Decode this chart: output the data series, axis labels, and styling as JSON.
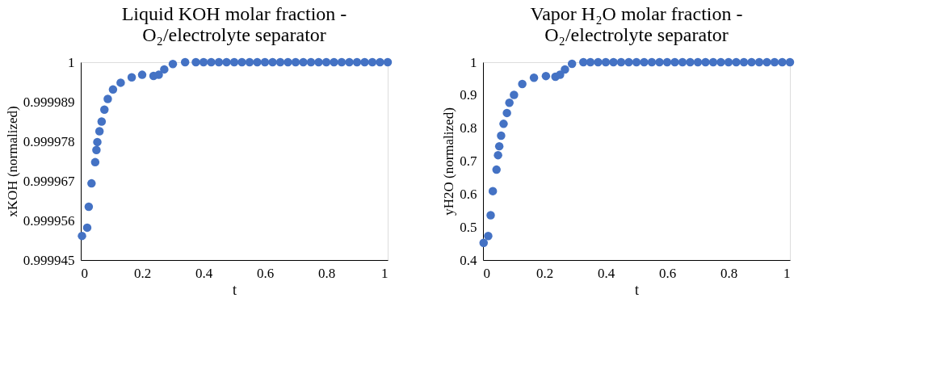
{
  "chart_data": [
    {
      "type": "scatter",
      "title": "Liquid KOH molar fraction -\nO₂/electrolyte separator",
      "xlabel": "t",
      "ylabel": "xKOH (normalized)",
      "xlim": [
        0,
        1
      ],
      "xticks": [
        0,
        0.2,
        0.4,
        0.6,
        0.8,
        1
      ],
      "ylim": [
        0.999945,
        1
      ],
      "yticks": [
        0.999945,
        0.999956,
        0.999967,
        0.999978,
        0.999989,
        1
      ],
      "grid": false,
      "marker": "circle",
      "series": [
        {
          "color": "#4472c4",
          "x": [
            0.004,
            0.021,
            0.026,
            0.035,
            0.047,
            0.051,
            0.054,
            0.061,
            0.068,
            0.077,
            0.088,
            0.105,
            0.13,
            0.166,
            0.2,
            0.237,
            0.254,
            0.272,
            0.3,
            0.34,
            0.375,
            0.4,
            0.425,
            0.45,
            0.475,
            0.5,
            0.525,
            0.55,
            0.575,
            0.6,
            0.625,
            0.65,
            0.675,
            0.7,
            0.725,
            0.75,
            0.775,
            0.8,
            0.825,
            0.85,
            0.875,
            0.9,
            0.925,
            0.95,
            0.975,
            1
          ],
          "values": [
            0.9999517,
            0.999954,
            0.9999598,
            0.9999663,
            0.9999722,
            0.9999756,
            0.9999778,
            0.9999808,
            0.9999835,
            0.9999868,
            0.9999898,
            0.9999924,
            0.9999943,
            0.9999958,
            0.9999965,
            0.9999962,
            0.9999965,
            0.999998,
            0.9999995,
            1,
            1,
            1,
            1,
            1,
            1,
            1,
            1,
            1,
            1,
            1,
            1,
            1,
            1,
            1,
            1,
            1,
            1,
            1,
            1,
            1,
            1,
            1,
            1,
            1,
            1,
            1
          ]
        }
      ]
    },
    {
      "type": "scatter",
      "title": "Vapor H₂O molar fraction -\nO₂/electrolyte separator",
      "xlabel": "t",
      "ylabel": "yH2O (normalized)",
      "xlim": [
        0,
        1
      ],
      "xticks": [
        0,
        0.2,
        0.4,
        0.6,
        0.8,
        1
      ],
      "ylim": [
        0.4,
        1
      ],
      "yticks": [
        0.4,
        0.5,
        0.6,
        0.7,
        0.8,
        0.9,
        1
      ],
      "grid": false,
      "marker": "circle",
      "series": [
        {
          "color": "#4472c4",
          "x": [
            0.002,
            0.017,
            0.025,
            0.032,
            0.044,
            0.049,
            0.053,
            0.059,
            0.067,
            0.078,
            0.086,
            0.101,
            0.128,
            0.166,
            0.205,
            0.236,
            0.251,
            0.267,
            0.29,
            0.327,
            0.35,
            0.375,
            0.4,
            0.425,
            0.45,
            0.475,
            0.5,
            0.525,
            0.55,
            0.575,
            0.6,
            0.625,
            0.65,
            0.675,
            0.7,
            0.725,
            0.75,
            0.775,
            0.8,
            0.825,
            0.85,
            0.875,
            0.9,
            0.925,
            0.95,
            0.975,
            1
          ],
          "values": [
            0.452,
            0.473,
            0.536,
            0.609,
            0.674,
            0.718,
            0.745,
            0.777,
            0.813,
            0.846,
            0.877,
            0.901,
            0.934,
            0.953,
            0.958,
            0.956,
            0.962,
            0.978,
            0.995,
            1,
            1,
            1,
            1,
            1,
            1,
            1,
            1,
            1,
            1,
            1,
            1,
            1,
            1,
            1,
            1,
            1,
            1,
            1,
            1,
            1,
            1,
            1,
            1,
            1,
            1,
            1,
            1
          ]
        }
      ]
    }
  ]
}
